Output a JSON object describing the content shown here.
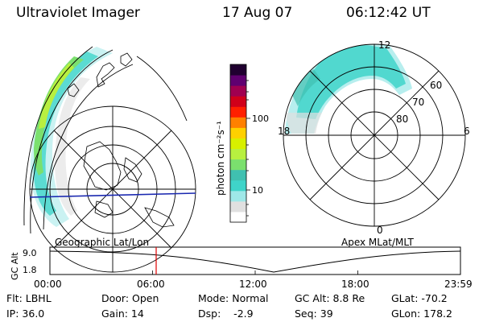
{
  "header": {
    "title": "Ultraviolet Imager",
    "date": "17 Aug 07",
    "time": "06:12:42 UT"
  },
  "geo_panel": {
    "label": "Geographic Lat/Lon"
  },
  "colorbar": {
    "label": "photon cm⁻²s⁻¹",
    "ticks": [
      "100",
      "10"
    ],
    "colors": [
      "#ffffff",
      "#e0e0e0",
      "#9fe8e8",
      "#3fd4c9",
      "#40c0b0",
      "#7be06e",
      "#b8f040",
      "#d8f000",
      "#ffd000",
      "#ff8000",
      "#ff2000",
      "#d0001a",
      "#a00050",
      "#600070",
      "#200030"
    ]
  },
  "polar_panel": {
    "label": "Apex MLat/MLT",
    "mlt_labels": [
      "12",
      "18",
      "6",
      "0"
    ],
    "lat_labels": [
      "60",
      "70",
      "80"
    ]
  },
  "timeline": {
    "ylabel": "GC Alt",
    "yticks": [
      "9.0",
      "1.8"
    ],
    "xticks": [
      "00:00",
      "06:00",
      "12:00",
      "18:00",
      "23:59"
    ],
    "marker_fraction": 0.2588
  },
  "info": {
    "flt": "Flt: LBHL",
    "ip": "IP: 36.0",
    "door": "Door: Open",
    "gain": "Gain: 14",
    "mode": "Mode: Normal",
    "dsp": "Dsp:    -2.9",
    "gcalt": "GC Alt: 8.8 Re",
    "seq": "Seq: 39",
    "glat": "GLat: -70.2",
    "glon": "GLon: 178.2"
  }
}
